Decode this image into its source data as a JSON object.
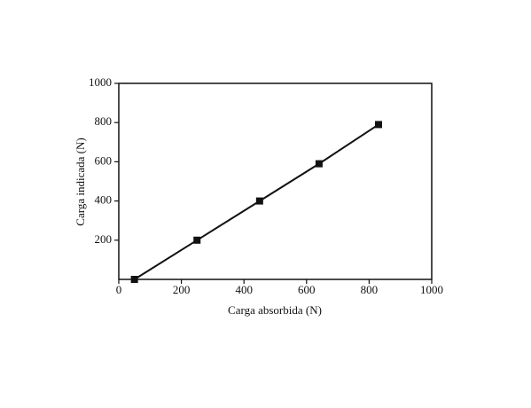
{
  "chart_data": {
    "type": "line",
    "x_label": "Carga  absorbida  (N)",
    "y_label": "Carga  indicada  (N)",
    "x": [
      50,
      250,
      450,
      640,
      830
    ],
    "series": [
      {
        "color": "#111111",
        "values": [
          0,
          200,
          400,
          590,
          790
        ]
      }
    ],
    "xlim": [
      0,
      1000
    ],
    "xticks": [
      0,
      200,
      400,
      600,
      800,
      1000
    ],
    "ylim": [
      0,
      1000
    ],
    "yticks": [
      200,
      400,
      600,
      800,
      1000
    ]
  }
}
